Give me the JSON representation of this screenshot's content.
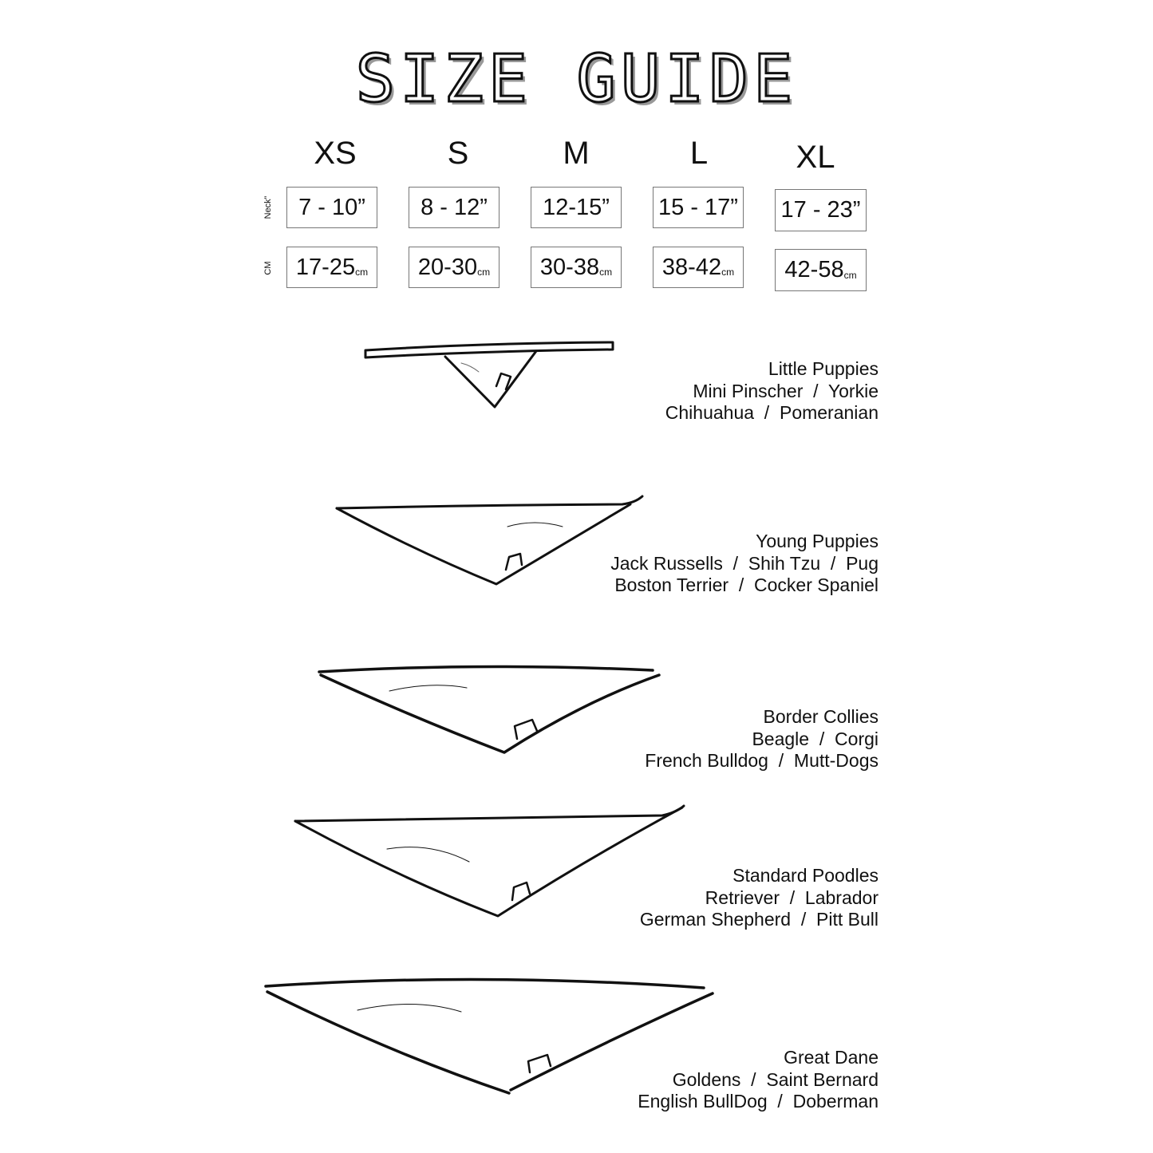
{
  "title": "SIZE GUIDE",
  "row_labels": {
    "neck": "Neck”",
    "cm": "CM"
  },
  "sizes": [
    {
      "label": "XS",
      "inches": "7 - 10”",
      "cm": "17-25",
      "unit": "cm"
    },
    {
      "label": "S",
      "inches": "8 - 12”",
      "cm": "20-30",
      "unit": "cm"
    },
    {
      "label": "M",
      "inches": "12-15”",
      "cm": "30-38",
      "unit": "cm"
    },
    {
      "label": "L",
      "inches": "15 - 17”",
      "cm": "38-42",
      "unit": "cm"
    },
    {
      "label": "XL",
      "inches": "17 - 23”",
      "cm": "42-58",
      "unit": "cm"
    }
  ],
  "breeds": [
    [
      "Little Puppies",
      "Mini Pinscher  /  Yorkie",
      "Chihuahua  /  Pomeranian"
    ],
    [
      "Young Puppies",
      "Jack Russells  /  Shih Tzu  /  Pug",
      "Boston Terrier  /  Cocker Spaniel"
    ],
    [
      "Border Collies",
      "Beagle  /  Corgi",
      "French Bulldog  /  Mutt-Dogs"
    ],
    [
      "Standard Poodles",
      "Retriever  /  Labrador",
      "German Shepherd  /  Pitt Bull"
    ],
    [
      "Great Dane",
      "Goldens  /  Saint Bernard",
      "English BullDog  /  Doberman"
    ]
  ]
}
